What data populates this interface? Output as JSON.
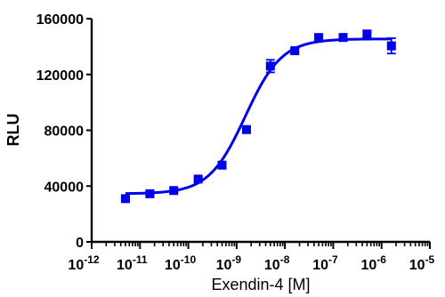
{
  "chart_data": {
    "type": "scatter",
    "title": "",
    "xlabel": "Exendin-4 [M]",
    "ylabel": "RLU",
    "x_scale": "log",
    "xlim": [
      1e-12,
      1e-05
    ],
    "ylim": [
      0,
      160000
    ],
    "grid": false,
    "x_tick_labels": [
      {
        "base": "10",
        "exp": "-12",
        "value": 1e-12
      },
      {
        "base": "10",
        "exp": "-11",
        "value": 1e-11
      },
      {
        "base": "10",
        "exp": "-10",
        "value": 1e-10
      },
      {
        "base": "10",
        "exp": "-9",
        "value": 1e-09
      },
      {
        "base": "10",
        "exp": "-8",
        "value": 1e-08
      },
      {
        "base": "10",
        "exp": "-7",
        "value": 1e-07
      },
      {
        "base": "10",
        "exp": "-6",
        "value": 1e-06
      },
      {
        "base": "10",
        "exp": "-5",
        "value": 1e-05
      }
    ],
    "y_ticks": [
      0,
      40000,
      80000,
      120000,
      160000
    ],
    "y_tick_labels": [
      "0",
      "40000",
      "80000",
      "120000",
      "160000"
    ],
    "color": "#0000ee",
    "series": [
      {
        "points": [
          {
            "x": 5e-12,
            "y": 31000,
            "err": 1200
          },
          {
            "x": 1.6e-11,
            "y": 34500,
            "err": 1000
          },
          {
            "x": 5e-11,
            "y": 36800,
            "err": 1000
          },
          {
            "x": 1.6e-10,
            "y": 45000,
            "err": 1200
          },
          {
            "x": 5e-10,
            "y": 55000,
            "err": 1200
          },
          {
            "x": 1.6e-09,
            "y": 80500,
            "err": 1500
          },
          {
            "x": 5e-09,
            "y": 126000,
            "err": 4500
          },
          {
            "x": 1.6e-08,
            "y": 137000,
            "err": 1500
          },
          {
            "x": 5e-08,
            "y": 146500,
            "err": 1500
          },
          {
            "x": 1.6e-07,
            "y": 146500,
            "err": 2500
          },
          {
            "x": 5e-07,
            "y": 149000,
            "err": 2500
          },
          {
            "x": 1.6e-06,
            "y": 140500,
            "err": 5500
          }
        ],
        "fit": {
          "model": "four-parameter logistic",
          "bottom": 34500,
          "top": 145500,
          "log_ec50": -8.82,
          "hill_slope": 1.15
        }
      }
    ]
  }
}
